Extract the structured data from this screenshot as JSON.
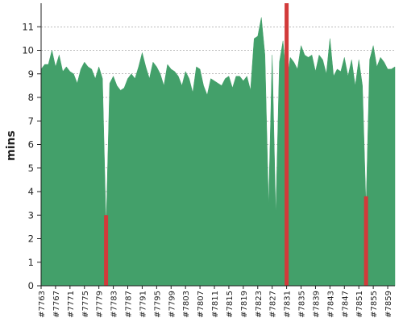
{
  "chart_data": {
    "type": "area",
    "title": "",
    "xlabel": "",
    "ylabel": "mins",
    "ylim": [
      0,
      12
    ],
    "yticks": [
      0,
      1,
      2,
      3,
      4,
      5,
      6,
      7,
      8,
      9,
      10,
      11
    ],
    "grid": true,
    "colors": {
      "area": "#43a06a",
      "failure": "#d23a3a"
    },
    "x_tick_labels": [
      "#7763",
      "#7767",
      "#7771",
      "#7775",
      "#7779",
      "#7783",
      "#7787",
      "#7791",
      "#7795",
      "#7799",
      "#7803",
      "#7807",
      "#7811",
      "#7815",
      "#7819",
      "#7823",
      "#7827",
      "#7831",
      "#7835",
      "#7839",
      "#7843",
      "#7847",
      "#7851",
      "#7855",
      "#7859"
    ],
    "x_start": 7763,
    "series": [
      {
        "values": [
          9.2,
          9.4,
          9.4,
          10.0,
          9.3,
          9.8,
          9.1,
          9.3,
          9.1,
          9.0,
          8.6,
          9.2,
          9.5,
          9.3,
          9.2,
          8.8,
          9.3,
          8.8,
          2.5,
          8.6,
          8.9,
          8.5,
          8.3,
          8.4,
          8.8,
          9.0,
          8.8,
          9.3,
          9.9,
          9.3,
          8.8,
          9.5,
          9.3,
          9.0,
          8.5,
          9.4,
          9.2,
          9.1,
          8.9,
          8.5,
          9.1,
          8.8,
          8.2,
          9.3,
          9.2,
          8.5,
          8.1,
          8.8,
          8.7,
          8.6,
          8.5,
          8.8,
          8.9,
          8.4,
          8.9,
          8.9,
          8.7,
          8.9,
          8.3,
          10.5,
          10.6,
          11.4,
          9.8,
          3.4,
          9.8,
          3.0,
          9.5,
          10.4,
          8.6,
          9.7,
          9.5,
          9.2,
          10.2,
          9.8,
          9.7,
          9.8,
          9.1,
          9.8,
          9.6,
          9.0,
          10.5,
          8.9,
          9.2,
          9.1,
          9.7,
          8.9,
          9.6,
          8.5,
          9.6,
          8.5,
          3.3,
          9.6,
          10.2,
          9.3,
          9.7,
          9.5,
          9.2,
          9.2,
          9.3
        ]
      }
    ],
    "failures": [
      {
        "x": 7781,
        "top": 3.0
      },
      {
        "x": 7831,
        "top": 12.0
      },
      {
        "x": 7853,
        "top": 3.8
      }
    ]
  }
}
